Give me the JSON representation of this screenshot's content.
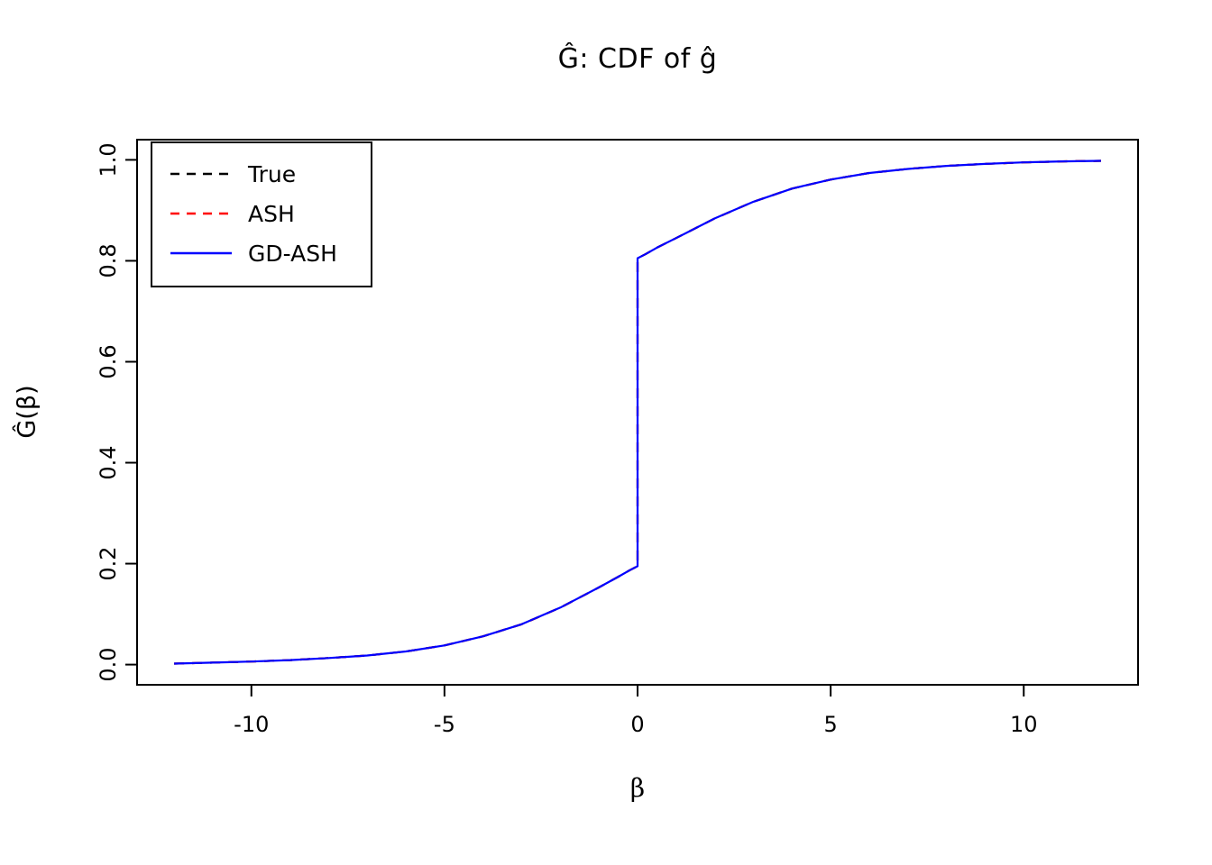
{
  "chart_data": {
    "type": "line",
    "title": "Ĝ: CDF of ĝ",
    "xlabel": "β",
    "ylabel": "Ĝ(β)",
    "xlim": [
      -12.96,
      12.96
    ],
    "ylim": [
      -0.04,
      1.04
    ],
    "grid": false,
    "legend_position": "topleft",
    "xticks": [
      {
        "value": -10,
        "label": "-10"
      },
      {
        "value": -5,
        "label": "-5"
      },
      {
        "value": 0,
        "label": "0"
      },
      {
        "value": 5,
        "label": "5"
      },
      {
        "value": 10,
        "label": "10"
      }
    ],
    "yticks": [
      {
        "value": 0.0,
        "label": "0.0"
      },
      {
        "value": 0.2,
        "label": "0.2"
      },
      {
        "value": 0.4,
        "label": "0.4"
      },
      {
        "value": 0.6,
        "label": "0.6"
      },
      {
        "value": 0.8,
        "label": "0.8"
      },
      {
        "value": 1.0,
        "label": "1.0"
      }
    ],
    "note": "All three CDF curves visually coincide; step jump at beta = 0 from about 0.195 to 0.805",
    "x": [
      -12,
      -11,
      -10,
      -9,
      -8,
      -7,
      -6,
      -5,
      -4,
      -3,
      -2,
      -1,
      -0.5,
      -0.2,
      0,
      0,
      0.2,
      0.5,
      1,
      2,
      3,
      4,
      5,
      6,
      7,
      8,
      9,
      10,
      11,
      12
    ],
    "series": [
      {
        "name": "True",
        "color": "#000000",
        "linetype": "dashed",
        "y": [
          0.002,
          0.004,
          0.006,
          0.009,
          0.013,
          0.018,
          0.026,
          0.038,
          0.056,
          0.08,
          0.113,
          0.153,
          0.174,
          0.187,
          0.195,
          0.805,
          0.813,
          0.826,
          0.845,
          0.884,
          0.917,
          0.943,
          0.961,
          0.974,
          0.982,
          0.988,
          0.992,
          0.995,
          0.997,
          0.998
        ]
      },
      {
        "name": "ASH",
        "color": "#FF0000",
        "linetype": "dashed",
        "y": [
          0.002,
          0.004,
          0.006,
          0.009,
          0.013,
          0.018,
          0.026,
          0.038,
          0.056,
          0.08,
          0.113,
          0.153,
          0.174,
          0.187,
          0.195,
          0.805,
          0.813,
          0.826,
          0.845,
          0.884,
          0.917,
          0.943,
          0.961,
          0.974,
          0.982,
          0.988,
          0.992,
          0.995,
          0.997,
          0.998
        ]
      },
      {
        "name": "GD-ASH",
        "color": "#0000FF",
        "linetype": "solid",
        "y": [
          0.002,
          0.004,
          0.006,
          0.009,
          0.013,
          0.018,
          0.026,
          0.038,
          0.056,
          0.08,
          0.113,
          0.153,
          0.174,
          0.187,
          0.195,
          0.805,
          0.813,
          0.826,
          0.845,
          0.884,
          0.917,
          0.943,
          0.961,
          0.974,
          0.982,
          0.988,
          0.992,
          0.995,
          0.997,
          0.998
        ]
      }
    ]
  }
}
